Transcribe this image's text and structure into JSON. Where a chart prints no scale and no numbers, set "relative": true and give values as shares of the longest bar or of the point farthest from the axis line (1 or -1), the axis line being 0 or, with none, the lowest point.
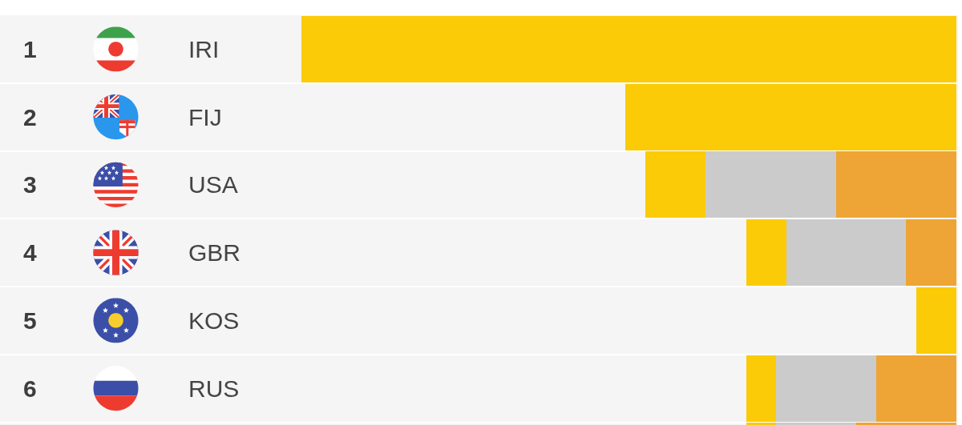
{
  "chart_data": {
    "type": "bar",
    "orientation": "horizontal",
    "stacked": true,
    "relative": true,
    "categories": [
      "IRI",
      "FIJ",
      "USA",
      "GBR",
      "KOS",
      "RUS",
      null
    ],
    "series": [
      {
        "color": "#eea535",
        "values": [
          0,
          0,
          0.184,
          0.077,
          0,
          0.122,
          0.153
        ]
      },
      {
        "color": "#cbcbcb",
        "values": [
          0,
          0,
          0.199,
          0.183,
          0,
          0.153,
          0.122
        ]
      },
      {
        "color": "#fbcb07",
        "values": [
          1,
          0.505,
          0.092,
          0.061,
          0.061,
          0.046,
          0.046
        ]
      }
    ],
    "annotations": [
      "1",
      "2",
      "3",
      "4",
      "5",
      "6"
    ]
  }
}
